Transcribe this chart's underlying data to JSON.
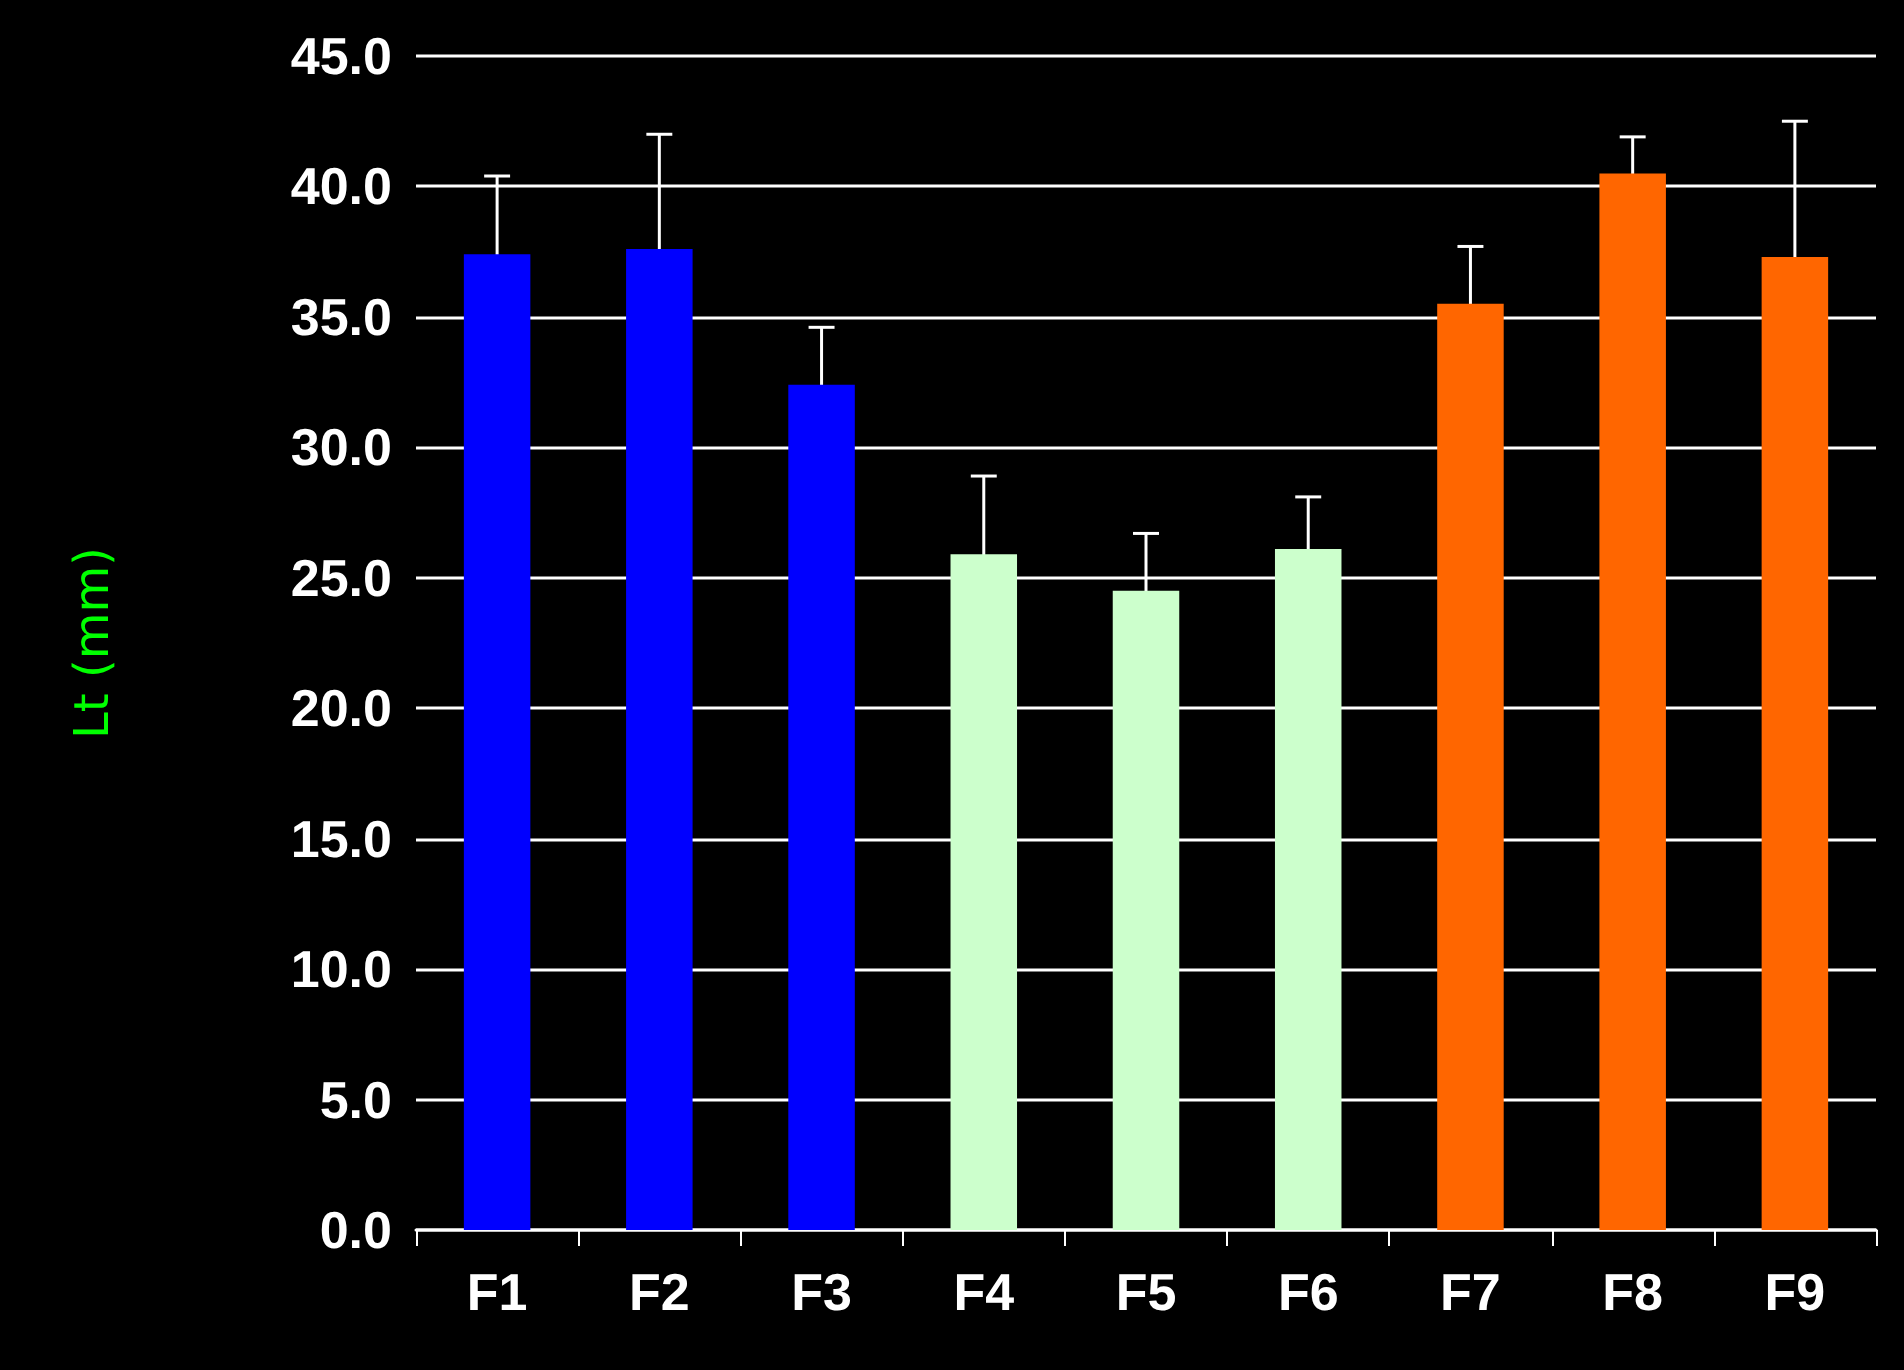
{
  "chart_data": {
    "type": "bar",
    "ylabel": "Lt (mm)",
    "categories": [
      "F1",
      "F2",
      "F3",
      "F4",
      "F5",
      "F6",
      "F7",
      "F8",
      "F9"
    ],
    "values": [
      37.4,
      37.6,
      32.4,
      25.9,
      24.5,
      26.1,
      35.5,
      40.5,
      37.3
    ],
    "colors": [
      "#0000ff",
      "#0000ff",
      "#0000ff",
      "#ccffcc",
      "#ccffcc",
      "#ccffcc",
      "#ff6600",
      "#ff6600",
      "#ff6600"
    ],
    "errors": [
      3.0,
      4.4,
      2.2,
      3.0,
      2.2,
      2.0,
      2.2,
      1.4,
      5.2
    ],
    "ylim": [
      0,
      45
    ],
    "yticks": [
      {
        "value": 0,
        "label": "0.0"
      },
      {
        "value": 5,
        "label": "5.0"
      },
      {
        "value": 10,
        "label": "10.0"
      },
      {
        "value": 15,
        "label": "15.0"
      },
      {
        "value": 20,
        "label": "20.0"
      },
      {
        "value": 25,
        "label": "25.0"
      },
      {
        "value": 30,
        "label": "30.0"
      },
      {
        "value": 35,
        "label": "35.0"
      },
      {
        "value": 40,
        "label": "40.0"
      },
      {
        "value": 45,
        "label": "45.0"
      }
    ],
    "grid": "y"
  }
}
